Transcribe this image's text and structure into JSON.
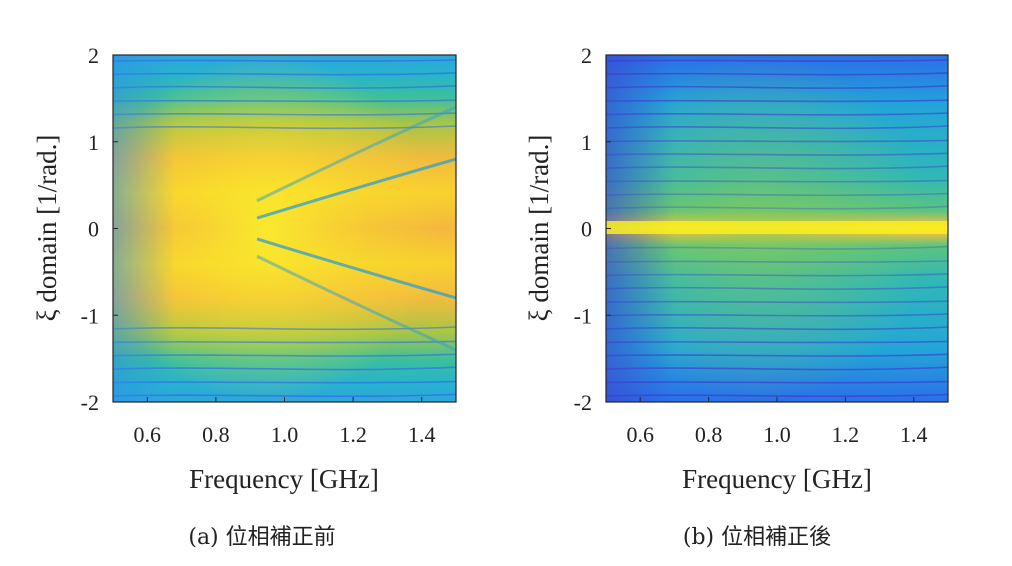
{
  "chart_data": [
    {
      "type": "heatmap",
      "caption": "(a) 位相補正前",
      "xlabel": "Frequency [GHz]",
      "ylabel": "ξ domain [1/rad.]",
      "xlim": [
        0.5,
        1.5
      ],
      "ylim": [
        -2,
        2
      ],
      "xticks": [
        "0.6",
        "0.8",
        "1.0",
        "1.2",
        "1.4"
      ],
      "yticks": [
        "2",
        "1",
        "0",
        "-1",
        "-2"
      ],
      "colormap": "parula",
      "description": "broad bright band near xi=0 widening toward high frequency, with diagonal dark streaks"
    },
    {
      "type": "heatmap",
      "caption": "(b) 位相補正後",
      "xlabel": "Frequency [GHz]",
      "ylabel": "ξ domain [1/rad.]",
      "xlim": [
        0.5,
        1.5
      ],
      "ylim": [
        -2,
        2
      ],
      "xticks": [
        "0.6",
        "0.8",
        "1.0",
        "1.2",
        "1.4"
      ],
      "yticks": [
        "2",
        "1",
        "0",
        "-1",
        "-2"
      ],
      "colormap": "parula",
      "description": "narrow bright horizontal line at xi=0, blue-green striped background"
    }
  ],
  "colors": {
    "dark_blue": "#3e26a8",
    "blue": "#2f7ff0",
    "cyan": "#22b2d4",
    "teal": "#3ebf96",
    "green": "#a8c43e",
    "orange": "#f6b93c",
    "yellow": "#f9f31f"
  }
}
